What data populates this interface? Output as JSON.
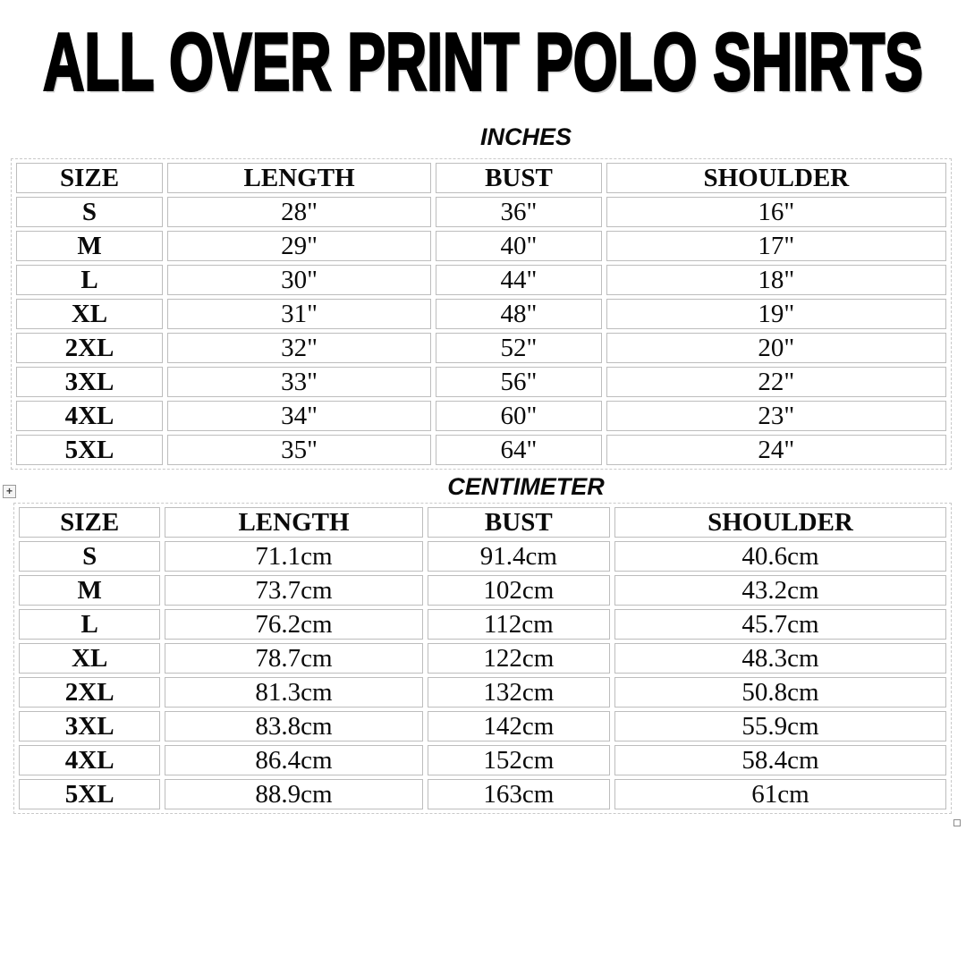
{
  "title": "ALL OVER PRINT POLO SHIRTS",
  "tables": [
    {
      "unit_label": "INCHES",
      "columns": [
        "SIZE",
        "LENGTH",
        "BUST",
        "SHOULDER"
      ],
      "rows": [
        [
          "S",
          "28\"",
          "36\"",
          "16\""
        ],
        [
          "M",
          "29\"",
          "40\"",
          "17\""
        ],
        [
          "L",
          "30\"",
          "44\"",
          "18\""
        ],
        [
          "XL",
          "31\"",
          "48\"",
          "19\""
        ],
        [
          "2XL",
          "32\"",
          "52\"",
          "20\""
        ],
        [
          "3XL",
          "33\"",
          "56\"",
          "22\""
        ],
        [
          "4XL",
          "34\"",
          "60\"",
          "23\""
        ],
        [
          "5XL",
          "35\"",
          "64\"",
          "24\""
        ]
      ]
    },
    {
      "unit_label": "CENTIMETER",
      "columns": [
        "SIZE",
        "LENGTH",
        "BUST",
        "SHOULDER"
      ],
      "rows": [
        [
          "S",
          "71.1cm",
          "91.4cm",
          "40.6cm"
        ],
        [
          "M",
          "73.7cm",
          "102cm",
          "43.2cm"
        ],
        [
          "L",
          "76.2cm",
          "112cm",
          "45.7cm"
        ],
        [
          "XL",
          "78.7cm",
          "122cm",
          "48.3cm"
        ],
        [
          "2XL",
          "81.3cm",
          "132cm",
          "50.8cm"
        ],
        [
          "3XL",
          "83.8cm",
          "142cm",
          "55.9cm"
        ],
        [
          "4XL",
          "86.4cm",
          "152cm",
          "58.4cm"
        ],
        [
          "5XL",
          "88.9cm",
          "163cm",
          "61cm"
        ]
      ]
    }
  ],
  "icons": {
    "move_handle_glyph": "+"
  },
  "colors": {
    "text": "#000000",
    "cell_border": "#bdbdbd",
    "table_outline": "#c9c9c9",
    "background": "#ffffff"
  }
}
